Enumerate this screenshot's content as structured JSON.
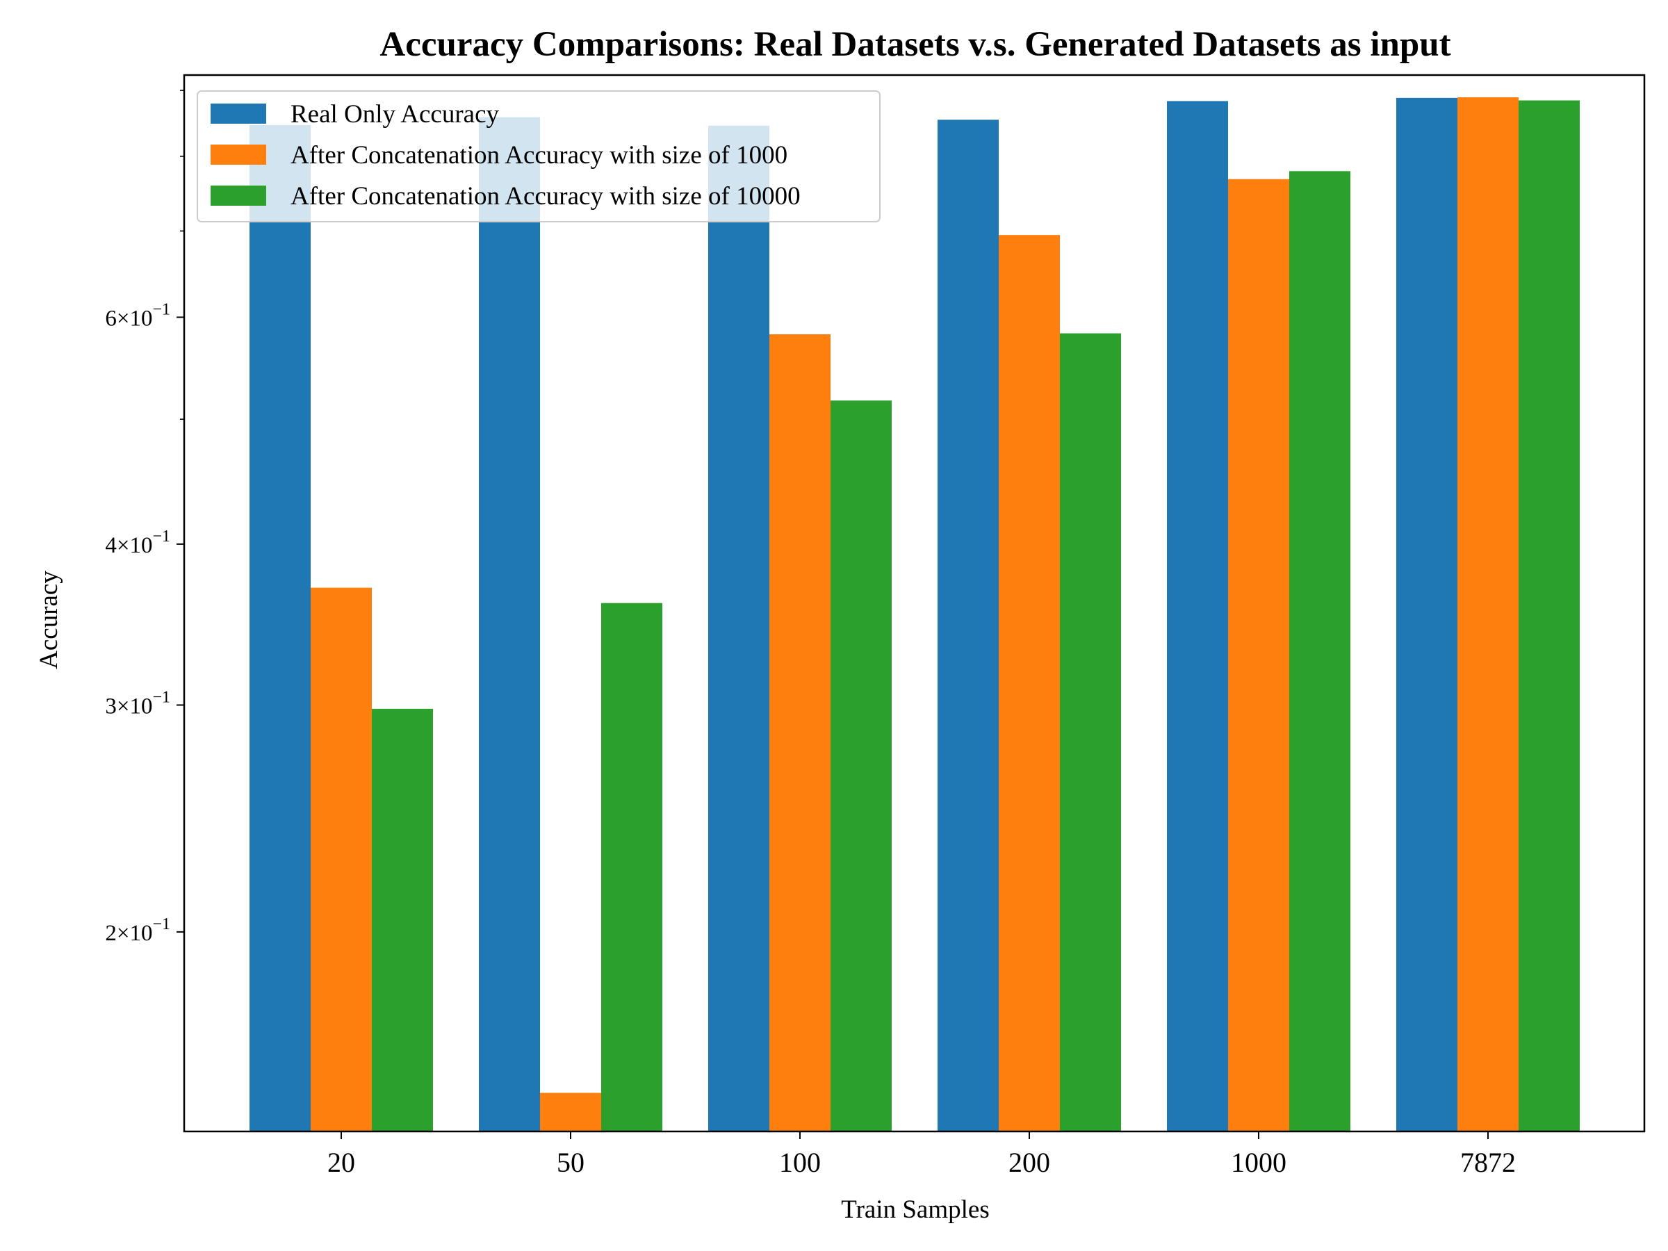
{
  "chart_data": {
    "type": "bar",
    "title": "Accuracy Comparisons: Real Datasets v.s. Generated Datasets as input",
    "xlabel": "Train Samples",
    "ylabel": "Accuracy",
    "yscale": "log",
    "ylim": [
      0.14,
      0.925
    ],
    "categories": [
      "20",
      "50",
      "100",
      "200",
      "1000",
      "7872"
    ],
    "series": [
      {
        "name": "Real Only Accuracy",
        "color": "#1f77b4",
        "values": [
          0.846,
          0.858,
          0.845,
          0.854,
          0.883,
          0.888
        ]
      },
      {
        "name": "After Concatenation Accuracy with size of 1000",
        "color": "#ff7f0e",
        "values": [
          0.37,
          0.15,
          0.582,
          0.695,
          0.768,
          0.889
        ]
      },
      {
        "name": "After Concatenation Accuracy with size of 10000",
        "color": "#2ca02c",
        "values": [
          0.298,
          0.36,
          0.517,
          0.583,
          0.779,
          0.884
        ]
      }
    ],
    "yticks": [
      {
        "value": 0.2,
        "mantissa": "2",
        "exp": "−1"
      },
      {
        "value": 0.3,
        "mantissa": "3",
        "exp": "−1"
      },
      {
        "value": 0.4,
        "mantissa": "4",
        "exp": "−1"
      },
      {
        "value": 0.6,
        "mantissa": "6",
        "exp": "−1"
      }
    ],
    "minor_yticks": [
      0.5,
      0.7,
      0.8,
      0.9
    ],
    "legend_position": "top-left"
  }
}
